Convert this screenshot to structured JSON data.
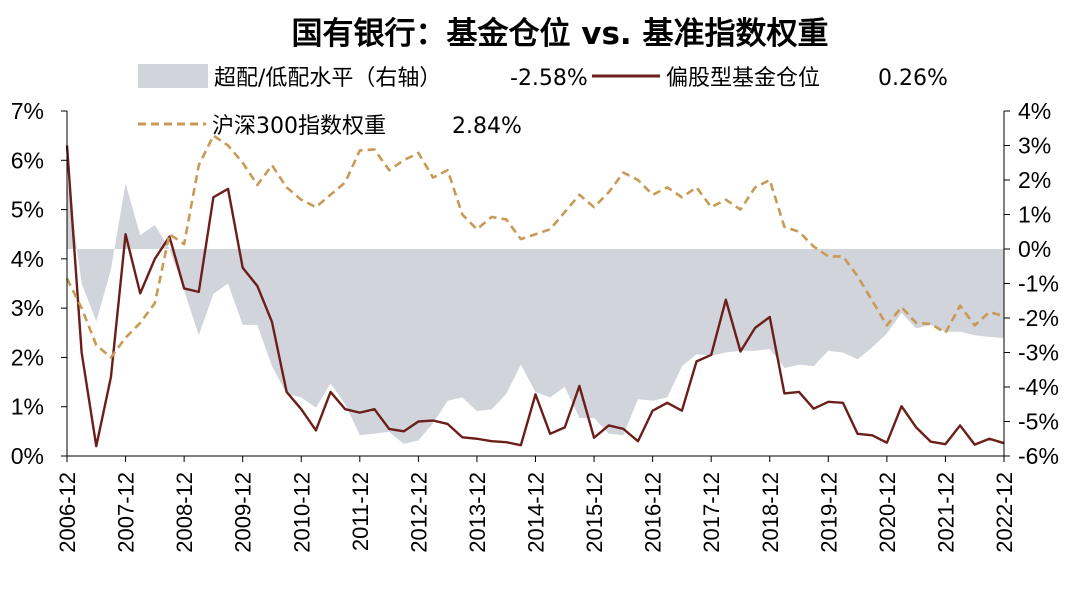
{
  "chart_data": {
    "type": "line",
    "title": "国有银行：基金仓位 vs. 基准指数权重",
    "x": [
      "2006-12",
      "2007-03",
      "2007-06",
      "2007-09",
      "2007-12",
      "2008-03",
      "2008-06",
      "2008-09",
      "2008-12",
      "2009-03",
      "2009-06",
      "2009-09",
      "2009-12",
      "2010-03",
      "2010-06",
      "2010-09",
      "2010-12",
      "2011-03",
      "2011-06",
      "2011-09",
      "2011-12",
      "2012-03",
      "2012-06",
      "2012-09",
      "2012-12",
      "2013-03",
      "2013-06",
      "2013-09",
      "2013-12",
      "2014-03",
      "2014-06",
      "2014-09",
      "2014-12",
      "2015-03",
      "2015-06",
      "2015-09",
      "2015-12",
      "2016-03",
      "2016-06",
      "2016-09",
      "2016-12",
      "2017-03",
      "2017-06",
      "2017-09",
      "2017-12",
      "2018-03",
      "2018-06",
      "2018-09",
      "2018-12",
      "2019-03",
      "2019-06",
      "2019-09",
      "2019-12",
      "2020-03",
      "2020-06",
      "2020-09",
      "2020-12",
      "2021-03",
      "2021-06",
      "2021-09",
      "2021-12",
      "2022-03",
      "2022-06",
      "2022-09",
      "2022-12"
    ],
    "xticks": [
      "2006-12",
      "2007-12",
      "2008-12",
      "2009-12",
      "2010-12",
      "2011-12",
      "2012-12",
      "2013-12",
      "2014-12",
      "2015-12",
      "2016-12",
      "2017-12",
      "2018-12",
      "2019-12",
      "2020-12",
      "2021-12",
      "2022-12"
    ],
    "left_axis": {
      "ylim": [
        0,
        7
      ],
      "ticks": [
        "0%",
        "1%",
        "2%",
        "3%",
        "4%",
        "5%",
        "6%",
        "7%"
      ]
    },
    "right_axis": {
      "ylim": [
        -6,
        4
      ],
      "ticks": [
        "-6%",
        "-5%",
        "-4%",
        "-3%",
        "-2%",
        "-1%",
        "0%",
        "1%",
        "2%",
        "3%",
        "4%"
      ]
    },
    "series": [
      {
        "name": "超配/低配水平（右轴）",
        "latest": "-2.58%",
        "type": "area",
        "axis": "right",
        "color": "#d2d4dc",
        "values": [
          2.1,
          -1.0,
          -2.1,
          -0.6,
          1.9,
          0.4,
          0.7,
          0.0,
          -1.2,
          -2.5,
          -1.3,
          -1.0,
          -2.2,
          -2.2,
          -3.4,
          -4.2,
          -4.3,
          -4.6,
          -3.9,
          -4.5,
          -5.4,
          -5.35,
          -5.3,
          -5.65,
          -5.55,
          -5.05,
          -4.4,
          -4.3,
          -4.7,
          -4.65,
          -4.2,
          -3.35,
          -4.15,
          -4.3,
          -4.0,
          -4.9,
          -4.9,
          -5.35,
          -5.4,
          -4.35,
          -4.4,
          -4.3,
          -3.4,
          -3.05,
          -3.1,
          -3.0,
          -2.95,
          -2.95,
          -2.9,
          -3.45,
          -3.35,
          -3.4,
          -2.95,
          -3.0,
          -3.2,
          -2.85,
          -2.45,
          -1.85,
          -2.3,
          -2.2,
          -2.4,
          -2.4,
          -2.5,
          -2.55,
          -2.58
        ]
      },
      {
        "name": "偏股型基金仓位",
        "latest": "0.26%",
        "type": "line",
        "axis": "left",
        "color": "#6b1e1a",
        "dash": "solid",
        "values": [
          6.3,
          2.1,
          0.2,
          1.6,
          4.5,
          3.3,
          4.0,
          4.45,
          3.4,
          3.33,
          5.25,
          5.42,
          3.82,
          3.45,
          2.72,
          1.3,
          0.95,
          0.52,
          1.3,
          0.95,
          0.88,
          0.95,
          0.55,
          0.5,
          0.7,
          0.72,
          0.65,
          0.38,
          0.35,
          0.3,
          0.28,
          0.22,
          1.25,
          0.45,
          0.58,
          1.42,
          0.37,
          0.62,
          0.55,
          0.3,
          0.92,
          1.08,
          0.92,
          1.92,
          2.05,
          3.17,
          2.12,
          2.6,
          2.82,
          1.27,
          1.3,
          0.96,
          1.1,
          1.08,
          0.45,
          0.42,
          0.27,
          1.01,
          0.58,
          0.29,
          0.24,
          0.62,
          0.23,
          0.35,
          0.26
        ]
      },
      {
        "name": "沪深300指数权重",
        "latest": "2.84%",
        "type": "line",
        "axis": "left",
        "color": "#c89a55",
        "dash": "dashed",
        "values": [
          3.6,
          3.0,
          2.25,
          2.0,
          2.4,
          2.7,
          3.1,
          4.5,
          4.3,
          5.9,
          6.5,
          6.3,
          5.95,
          5.5,
          5.9,
          5.45,
          5.2,
          5.05,
          5.3,
          5.55,
          6.2,
          6.22,
          5.8,
          6.0,
          6.15,
          5.65,
          5.8,
          4.9,
          4.6,
          4.85,
          4.8,
          4.4,
          4.5,
          4.6,
          4.95,
          5.3,
          5.05,
          5.35,
          5.75,
          5.6,
          5.3,
          5.45,
          5.25,
          5.45,
          5.05,
          5.2,
          5.0,
          5.45,
          5.6,
          4.65,
          4.55,
          4.25,
          4.05,
          4.05,
          3.65,
          3.15,
          2.65,
          3.02,
          2.7,
          2.68,
          2.5,
          3.05,
          2.65,
          2.92,
          2.84
        ]
      }
    ],
    "grid": false,
    "legend_placement": "top"
  }
}
